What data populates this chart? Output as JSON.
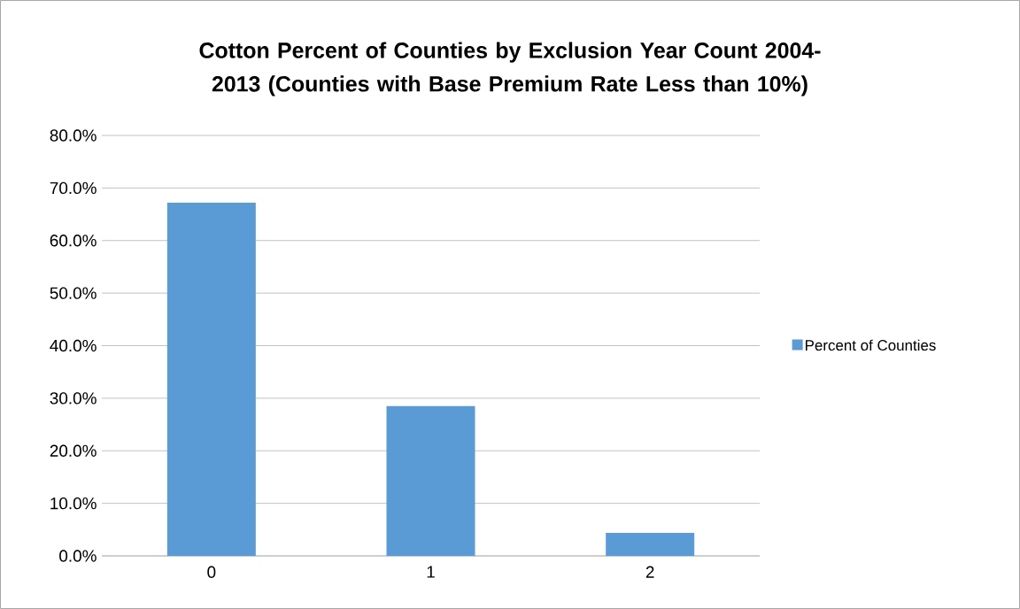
{
  "chart_data": {
    "type": "bar",
    "title": "Cotton Percent of Counties by Exclusion Year Count 2004-2013 (Counties with Base Premium Rate Less than 10%)",
    "categories": [
      "0",
      "1",
      "2"
    ],
    "series": [
      {
        "name": "Percent of Counties",
        "color": "#5b9bd5",
        "values": [
          67.2,
          28.5,
          4.4
        ]
      }
    ],
    "ylim": [
      0,
      80
    ],
    "yticks": [
      {
        "value": 0,
        "label": "0.0%"
      },
      {
        "value": 10,
        "label": "10.0%"
      },
      {
        "value": 20,
        "label": "20.0%"
      },
      {
        "value": 30,
        "label": "30.0%"
      },
      {
        "value": 40,
        "label": "40.0%"
      },
      {
        "value": 50,
        "label": "50.0%"
      },
      {
        "value": 60,
        "label": "60.0%"
      },
      {
        "value": 70,
        "label": "70.0%"
      },
      {
        "value": 80,
        "label": "80.0%"
      }
    ],
    "grid": "y",
    "legend": "right"
  }
}
